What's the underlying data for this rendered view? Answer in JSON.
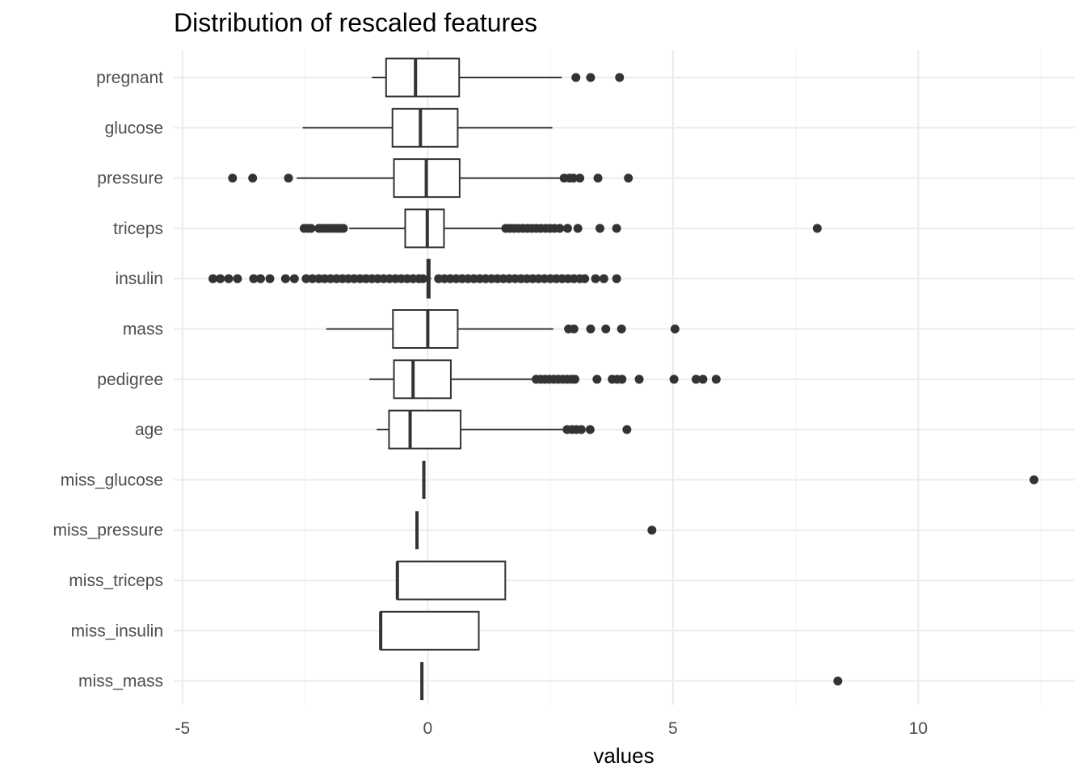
{
  "chart_data": {
    "type": "boxplot",
    "title": "Distribution of rescaled features",
    "xlabel": "values",
    "ylabel": "",
    "xlim": [
      -5.0,
      13.0
    ],
    "x_ticks": [
      -5,
      0,
      5,
      10
    ],
    "x_tick_labels": [
      "-5",
      "0",
      "5",
      "10"
    ],
    "grid": true,
    "categories": [
      "pregnant",
      "glucose",
      "pressure",
      "triceps",
      "insulin",
      "mass",
      "pedigree",
      "age",
      "miss_glucose",
      "miss_pressure",
      "miss_triceps",
      "miss_insulin",
      "miss_mass"
    ],
    "boxes": [
      {
        "name": "pregnant",
        "whisker_low": -1.14,
        "q1": -0.85,
        "median": -0.25,
        "q3": 0.64,
        "whisker_high": 2.73,
        "outliers": [
          3.02,
          3.32,
          3.91
        ]
      },
      {
        "name": "glucose",
        "whisker_low": -2.55,
        "q1": -0.72,
        "median": -0.15,
        "q3": 0.61,
        "whisker_high": 2.54,
        "outliers": []
      },
      {
        "name": "pressure",
        "whisker_low": -2.67,
        "q1": -0.69,
        "median": -0.03,
        "q3": 0.65,
        "whisker_high": 2.7,
        "outliers": [
          -3.98,
          -3.57,
          -2.84,
          2.78,
          2.89,
          2.97,
          3.1,
          3.47,
          4.09
        ]
      },
      {
        "name": "triceps",
        "whisker_low": -1.6,
        "q1": -0.46,
        "median": -0.01,
        "q3": 0.33,
        "whisker_high": 1.53,
        "outliers": [
          -2.52,
          -2.44,
          -2.38,
          -2.22,
          -2.16,
          -2.09,
          -2.03,
          -1.97,
          -1.91,
          -1.84,
          -1.78,
          -1.72,
          1.59,
          1.67,
          1.76,
          1.85,
          1.94,
          2.03,
          2.12,
          2.21,
          2.3,
          2.4,
          2.49,
          2.58,
          2.69,
          2.85,
          3.06,
          3.51,
          3.85,
          7.94
        ]
      },
      {
        "name": "insulin",
        "whisker_low": -0.04,
        "q1": -0.01,
        "median": 0.01,
        "q3": 0.04,
        "whisker_high": 0.07,
        "outliers": [
          -4.38,
          -4.23,
          -4.06,
          -3.88,
          -3.55,
          -3.41,
          -3.22,
          -2.9,
          -2.72,
          -2.48,
          -2.35,
          -2.22,
          -2.1,
          -1.98,
          -1.86,
          -1.74,
          -1.62,
          -1.5,
          -1.38,
          -1.26,
          -1.14,
          -1.02,
          -0.9,
          -0.78,
          -0.66,
          -0.54,
          -0.42,
          -0.3,
          -0.18,
          -0.1,
          0.22,
          0.34,
          0.46,
          0.58,
          0.7,
          0.82,
          0.94,
          1.06,
          1.18,
          1.3,
          1.42,
          1.54,
          1.66,
          1.78,
          1.9,
          2.02,
          2.14,
          2.26,
          2.38,
          2.5,
          2.62,
          2.74,
          2.86,
          2.98,
          3.1,
          3.2,
          3.42,
          3.59,
          3.85
        ]
      },
      {
        "name": "mass",
        "whisker_low": -2.07,
        "q1": -0.71,
        "median": 0.0,
        "q3": 0.61,
        "whisker_high": 2.56,
        "outliers": [
          2.87,
          2.98,
          3.32,
          3.63,
          3.95,
          5.04
        ]
      },
      {
        "name": "pedigree",
        "whisker_low": -1.19,
        "q1": -0.69,
        "median": -0.3,
        "q3": 0.47,
        "whisker_high": 2.14,
        "outliers": [
          2.21,
          2.3,
          2.39,
          2.48,
          2.57,
          2.66,
          2.75,
          2.84,
          2.93,
          3.0,
          3.45,
          3.76,
          3.86,
          3.96,
          4.31,
          5.02,
          5.47,
          5.61,
          5.88
        ]
      },
      {
        "name": "age",
        "whisker_low": -1.04,
        "q1": -0.79,
        "median": -0.36,
        "q3": 0.67,
        "whisker_high": 2.75,
        "outliers": [
          2.84,
          2.94,
          3.03,
          3.13,
          3.31,
          4.06
        ]
      },
      {
        "name": "miss_glucose",
        "whisker_low": -0.08,
        "q1": -0.08,
        "median": -0.08,
        "q3": -0.08,
        "whisker_high": -0.08,
        "outliers": [
          12.36
        ]
      },
      {
        "name": "miss_pressure",
        "whisker_low": -0.22,
        "q1": -0.22,
        "median": -0.22,
        "q3": -0.22,
        "whisker_high": -0.22,
        "outliers": [
          4.57
        ]
      },
      {
        "name": "miss_triceps",
        "whisker_low": -0.62,
        "q1": -0.62,
        "median": -0.62,
        "q3": 1.58,
        "whisker_high": 1.58,
        "outliers": []
      },
      {
        "name": "miss_insulin",
        "whisker_low": -0.96,
        "q1": -0.96,
        "median": -0.96,
        "q3": 1.04,
        "whisker_high": 1.04,
        "outliers": []
      },
      {
        "name": "miss_mass",
        "whisker_low": -0.12,
        "q1": -0.12,
        "median": -0.12,
        "q3": -0.12,
        "whisker_high": -0.12,
        "outliers": [
          8.36
        ]
      }
    ]
  },
  "colors": {
    "box_stroke": "#333333",
    "grid_major": "#ebebeb",
    "grid_minor": "#f3f3f3",
    "point_fill": "#333333",
    "label_text": "#4d4d4d",
    "title_text": "#000000"
  }
}
